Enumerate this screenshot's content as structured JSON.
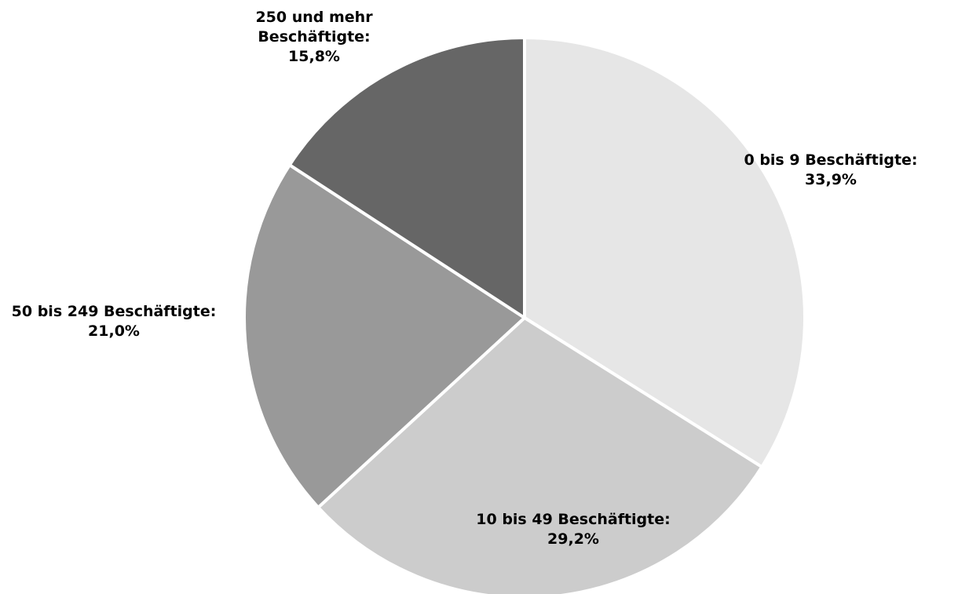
{
  "chart_data": {
    "type": "pie",
    "title": "",
    "start_angle_deg": 0,
    "direction": "clockwise",
    "slices": [
      {
        "label": "0 bis 9 Beschäftigte:",
        "value_text": "33,9%",
        "value": 33.9,
        "color": "#e6e6e6"
      },
      {
        "label": "10 bis 49 Beschäftigte:",
        "value_text": "29,2%",
        "value": 29.2,
        "color": "#cccccc"
      },
      {
        "label": "50 bis 249 Beschäftigte:",
        "value_text": "21,0%",
        "value": 21.0,
        "color": "#999999"
      },
      {
        "label_lines": [
          "250 und mehr",
          "Beschäftigte:"
        ],
        "value_text": "15,8%",
        "value": 15.8,
        "color": "#666666"
      }
    ],
    "legend": "none"
  }
}
